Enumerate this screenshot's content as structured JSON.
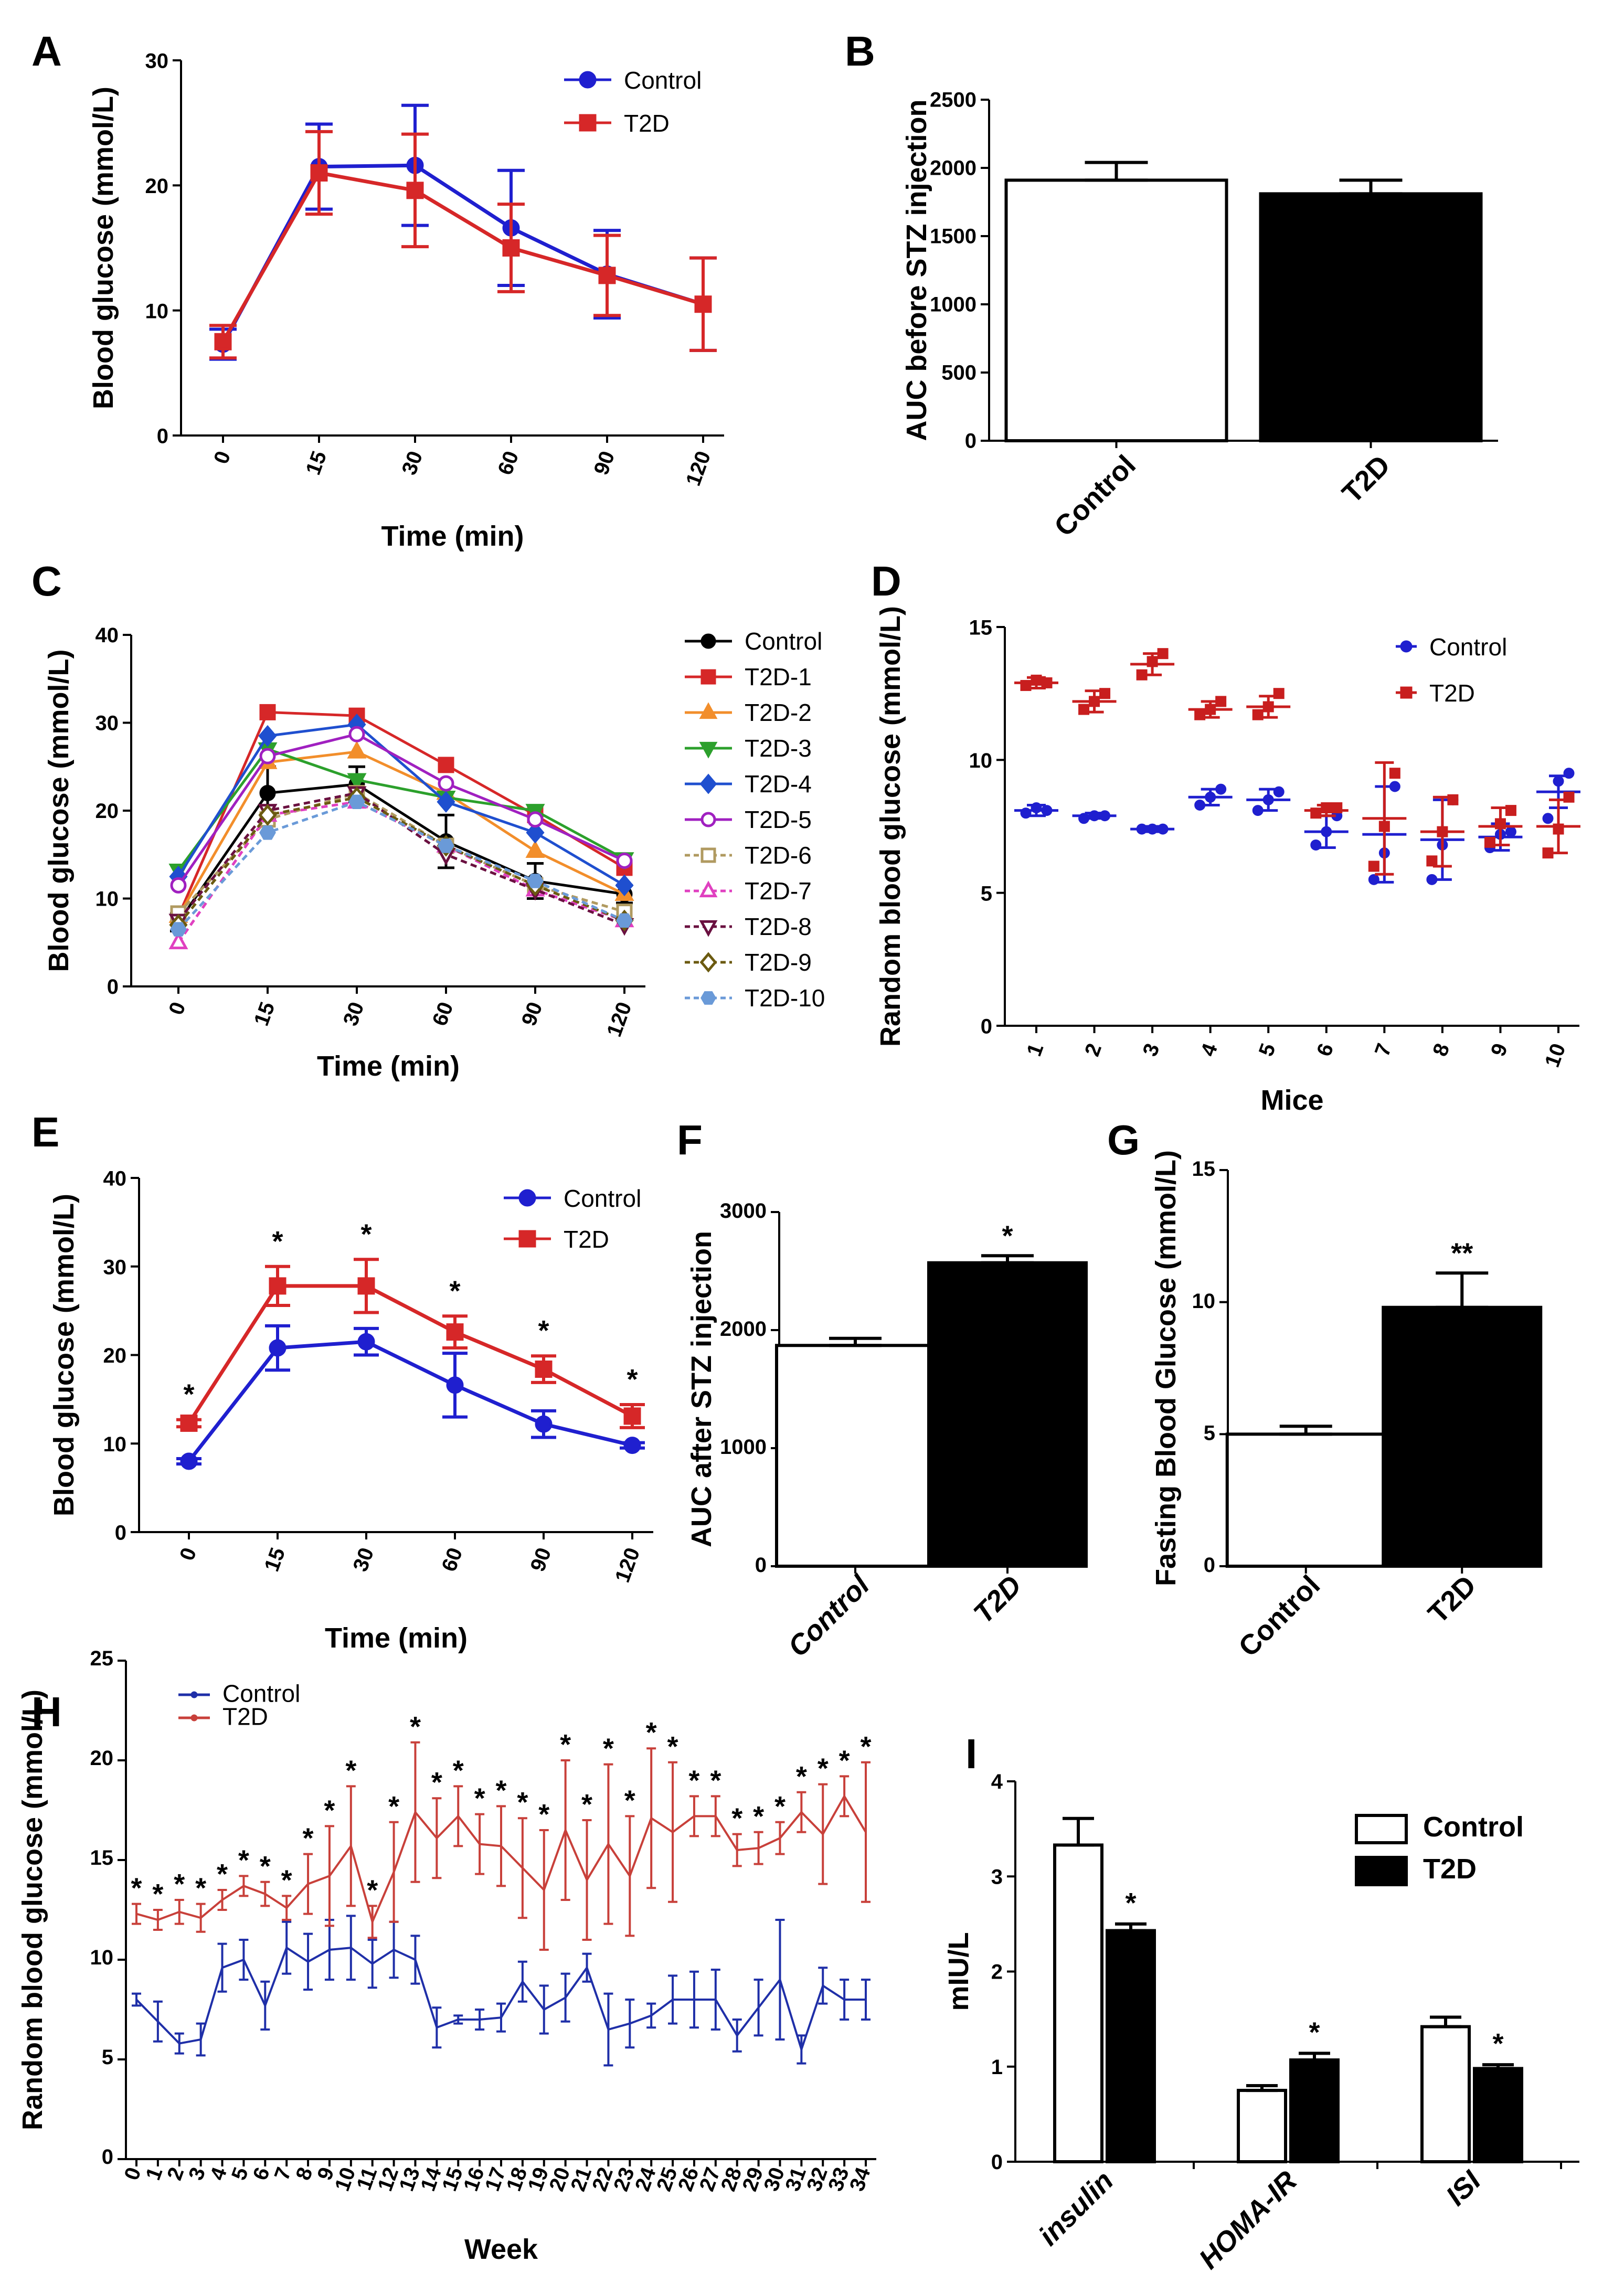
{
  "figure_labels": [
    "A",
    "B",
    "C",
    "D",
    "E",
    "F",
    "G",
    "H",
    "I"
  ],
  "chart_data": [
    {
      "panel": "A",
      "type": "line",
      "xlabel": "Time (min)",
      "ylabel": "Blood glucose (mmol/L)",
      "categories": [
        "0",
        "15",
        "30",
        "60",
        "90",
        "120"
      ],
      "ylim": [
        0,
        30
      ],
      "yticks": [
        0,
        10,
        20,
        30
      ],
      "legend": "top-right",
      "series": [
        {
          "name": "Control",
          "color": "#1f1fcf",
          "marker": "circle",
          "values": [
            7.3,
            21.5,
            21.6,
            16.6,
            12.9,
            10.5
          ],
          "errors": [
            1.2,
            3.4,
            4.8,
            4.6,
            3.5,
            3.7
          ]
        },
        {
          "name": "T2D",
          "color": "#d62728",
          "marker": "square",
          "values": [
            7.5,
            21.0,
            19.6,
            15.0,
            12.8,
            10.5
          ],
          "errors": [
            1.3,
            3.3,
            4.5,
            3.5,
            3.2,
            3.7
          ]
        }
      ]
    },
    {
      "panel": "B",
      "type": "bar",
      "ylabel": "AUC before STZ injection",
      "categories": [
        "Control",
        "T2D"
      ],
      "values": [
        1910,
        1810
      ],
      "errors": [
        130,
        100
      ],
      "fills": [
        "#ffffff",
        "#000000"
      ],
      "ylim": [
        0,
        2500
      ],
      "yticks": [
        0,
        500,
        1000,
        1500,
        2000,
        2500
      ]
    },
    {
      "panel": "C",
      "type": "line",
      "xlabel": "Time (min)",
      "ylabel": "Blood glucose (mmol/L)",
      "categories": [
        "0",
        "15",
        "30",
        "60",
        "90",
        "120"
      ],
      "ylim": [
        0,
        40
      ],
      "yticks": [
        0,
        10,
        20,
        30,
        40
      ],
      "legend": "right",
      "series": [
        {
          "name": "Control",
          "color": "#000000",
          "marker": "circle",
          "dashed": false,
          "values": [
            7.3,
            22.0,
            23.0,
            16.5,
            12.0,
            10.5
          ],
          "errors": [
            1,
            3,
            2,
            3,
            2,
            1
          ]
        },
        {
          "name": "T2D-1",
          "color": "#d62728",
          "marker": "square",
          "dashed": false,
          "values": [
            8.0,
            31.2,
            30.8,
            25.2,
            19.5,
            13.5
          ]
        },
        {
          "name": "T2D-2",
          "color": "#f28e2b",
          "marker": "triangle",
          "dashed": false,
          "values": [
            8.0,
            25.5,
            26.7,
            22.0,
            15.4,
            10.5
          ]
        },
        {
          "name": "T2D-3",
          "color": "#2ca02c",
          "marker": "tridown",
          "dashed": false,
          "values": [
            13.2,
            27.0,
            23.5,
            21.5,
            20.0,
            14.5
          ]
        },
        {
          "name": "T2D-4",
          "color": "#1f4fcf",
          "marker": "diamond",
          "dashed": false,
          "values": [
            12.5,
            28.5,
            29.8,
            21.0,
            17.5,
            11.5
          ]
        },
        {
          "name": "T2D-5",
          "color": "#a020c0",
          "marker": "ocircle",
          "dashed": false,
          "values": [
            11.5,
            26.2,
            28.7,
            23.1,
            19.0,
            14.3
          ]
        },
        {
          "name": "T2D-6",
          "color": "#b09a60",
          "marker": "osquare",
          "dashed": true,
          "values": [
            8.3,
            19.0,
            22.0,
            16.0,
            11.5,
            8.5
          ]
        },
        {
          "name": "T2D-7",
          "color": "#e040c0",
          "marker": "otriangle",
          "dashed": true,
          "values": [
            5.0,
            19.5,
            21.0,
            16.0,
            11.0,
            7.5
          ]
        },
        {
          "name": "T2D-8",
          "color": "#6a1040",
          "marker": "otridown",
          "dashed": true,
          "values": [
            7.5,
            20.0,
            22.0,
            15.0,
            11.0,
            7.0
          ]
        },
        {
          "name": "T2D-9",
          "color": "#6b5a10",
          "marker": "odiamond",
          "dashed": true,
          "values": [
            7.0,
            19.5,
            21.5,
            16.0,
            11.5,
            7.5
          ]
        },
        {
          "name": "T2D-10",
          "color": "#6a9ad8",
          "marker": "hexagon",
          "dashed": true,
          "values": [
            6.5,
            17.5,
            21.0,
            16.0,
            12.0,
            7.5
          ]
        }
      ]
    },
    {
      "panel": "D",
      "type": "scatter",
      "xlabel": "Mice",
      "ylabel": "Random blood glucose (mmol/L)",
      "categories": [
        "1",
        "2",
        "3",
        "4",
        "5",
        "6",
        "7",
        "8",
        "9",
        "10"
      ],
      "ylim": [
        0,
        15
      ],
      "yticks": [
        0,
        5,
        10,
        15
      ],
      "legend": "top-right",
      "series": [
        {
          "name": "Control",
          "color": "#1f1fcf",
          "marker": "circle",
          "means": [
            8.1,
            7.9,
            7.4,
            8.6,
            8.5,
            7.3,
            7.2,
            7.0,
            7.1,
            8.8
          ],
          "errors": [
            0.2,
            0.1,
            0.1,
            0.3,
            0.4,
            0.6,
            1.8,
            1.5,
            0.5,
            0.6
          ],
          "points": [
            [
              8.0,
              8.2,
              8.1
            ],
            [
              7.8,
              7.9,
              7.9
            ],
            [
              7.4,
              7.4,
              7.4
            ],
            [
              8.3,
              8.6,
              8.9
            ],
            [
              8.1,
              8.5,
              8.8
            ],
            [
              6.8,
              7.3,
              7.9
            ],
            [
              5.5,
              6.5,
              9.0
            ],
            [
              5.5,
              6.8,
              8.5
            ],
            [
              6.7,
              7.2,
              7.3
            ],
            [
              7.8,
              9.2,
              9.5
            ]
          ]
        },
        {
          "name": "T2D",
          "color": "#c81e1e",
          "marker": "square",
          "means": [
            12.9,
            12.2,
            13.6,
            11.9,
            12.0,
            8.1,
            7.8,
            7.3,
            7.5,
            7.5
          ],
          "errors": [
            0.2,
            0.4,
            0.4,
            0.3,
            0.4,
            0.2,
            2.1,
            1.3,
            0.7,
            1.0
          ],
          "points": [
            [
              12.8,
              13.0,
              12.9
            ],
            [
              11.9,
              12.2,
              12.5
            ],
            [
              13.2,
              13.7,
              14.0
            ],
            [
              11.7,
              11.9,
              12.2
            ],
            [
              11.7,
              12.0,
              12.5
            ],
            [
              8.0,
              8.2,
              8.2
            ],
            [
              6.0,
              7.5,
              9.5
            ],
            [
              6.2,
              7.3,
              8.5
            ],
            [
              6.9,
              7.6,
              8.1
            ],
            [
              6.5,
              7.4,
              8.6
            ]
          ]
        }
      ]
    },
    {
      "panel": "E",
      "type": "line",
      "xlabel": "Time (min)",
      "ylabel": "Blood glucose (mmol/L)",
      "categories": [
        "0",
        "15",
        "30",
        "60",
        "90",
        "120"
      ],
      "ylim": [
        0,
        40
      ],
      "yticks": [
        0,
        10,
        20,
        30,
        40
      ],
      "legend": "top-right",
      "significance": [
        "*",
        "*",
        "*",
        "*",
        "*",
        "*"
      ],
      "series": [
        {
          "name": "Control",
          "color": "#1f1fcf",
          "marker": "circle",
          "values": [
            8.0,
            20.8,
            21.5,
            16.6,
            12.2,
            9.8
          ],
          "errors": [
            0.3,
            2.5,
            1.5,
            3.6,
            1.5,
            0.3
          ]
        },
        {
          "name": "T2D",
          "color": "#d62728",
          "marker": "square",
          "values": [
            12.3,
            27.8,
            27.8,
            22.6,
            18.4,
            13.1
          ],
          "errors": [
            0.4,
            2.2,
            3.0,
            1.8,
            1.5,
            1.3
          ]
        }
      ]
    },
    {
      "panel": "F",
      "type": "bar",
      "ylabel": "AUC after STZ injection",
      "categories": [
        "Control",
        "T2D"
      ],
      "values": [
        1870,
        2570
      ],
      "errors": [
        60,
        60
      ],
      "fills": [
        "#ffffff",
        "#000000"
      ],
      "significance": [
        "",
        "*"
      ],
      "ylim": [
        0,
        3000
      ],
      "yticks": [
        0,
        1000,
        2000,
        3000
      ]
    },
    {
      "panel": "G",
      "type": "bar",
      "ylabel": "Fasting Blood Glucose (mmol/L)",
      "categories": [
        "Control",
        "T2D"
      ],
      "values": [
        5.0,
        9.8
      ],
      "errors": [
        0.3,
        1.3
      ],
      "fills": [
        "#ffffff",
        "#000000"
      ],
      "significance": [
        "",
        "**"
      ],
      "ylim": [
        0,
        15
      ],
      "yticks": [
        0,
        5,
        10,
        15
      ]
    },
    {
      "panel": "H",
      "type": "line",
      "xlabel": "Week",
      "ylabel": "Random blood glucose (mmol/L)",
      "categories": [
        "0",
        "1",
        "2",
        "3",
        "4",
        "5",
        "6",
        "7",
        "8",
        "9",
        "10",
        "11",
        "12",
        "13",
        "14",
        "15",
        "16",
        "17",
        "18",
        "19",
        "20",
        "21",
        "22",
        "23",
        "24",
        "25",
        "26",
        "27",
        "28",
        "29",
        "30",
        "31",
        "32",
        "33",
        "34"
      ],
      "ylim": [
        0,
        25
      ],
      "yticks": [
        0,
        5,
        10,
        15,
        20,
        25
      ],
      "legend": "top-left",
      "significance": [
        "*",
        "*",
        "*",
        "*",
        "*",
        "*",
        "*",
        "*",
        "*",
        "*",
        "*",
        "*",
        "*",
        "*",
        "*",
        "*",
        "*",
        "*",
        "*",
        "*",
        "*",
        "*",
        "*",
        "*",
        "*",
        "*",
        "*",
        "*",
        "*",
        "*",
        "*",
        "*",
        "*",
        "*",
        "*"
      ],
      "series": [
        {
          "name": "Control",
          "color": "#1f2fa8",
          "values": [
            8.0,
            6.9,
            5.8,
            6.0,
            9.6,
            10.0,
            7.7,
            10.6,
            9.9,
            10.5,
            10.6,
            9.8,
            10.5,
            10.0,
            6.6,
            7.0,
            7.0,
            7.1,
            8.9,
            7.5,
            8.1,
            9.6,
            6.5,
            6.8,
            7.2,
            8.0,
            8.0,
            8.0,
            6.2,
            7.6,
            9.0,
            5.5,
            8.7,
            8.0,
            8.0
          ],
          "errors": [
            0.3,
            1.0,
            0.5,
            0.8,
            1.2,
            1.0,
            1.2,
            1.3,
            1.4,
            1.5,
            1.6,
            1.2,
            1.4,
            1.2,
            1.0,
            0.2,
            0.5,
            0.7,
            1.0,
            1.2,
            1.2,
            0.7,
            1.8,
            1.2,
            0.6,
            1.2,
            1.4,
            1.5,
            0.8,
            1.4,
            3.0,
            0.7,
            0.9,
            1.0,
            1.0
          ]
        },
        {
          "name": "T2D",
          "color": "#c8403a",
          "values": [
            12.3,
            12.0,
            12.4,
            12.1,
            13.0,
            13.7,
            13.3,
            12.6,
            13.8,
            14.2,
            15.7,
            11.9,
            14.4,
            17.4,
            16.1,
            17.2,
            15.8,
            15.7,
            14.6,
            13.5,
            16.5,
            14.0,
            15.8,
            14.2,
            17.1,
            16.4,
            17.2,
            17.2,
            15.5,
            15.6,
            16.1,
            17.4,
            16.3,
            18.2,
            16.4
          ],
          "errors": [
            0.5,
            0.5,
            0.6,
            0.7,
            0.5,
            0.5,
            0.6,
            0.6,
            1.5,
            2.5,
            3.0,
            0.8,
            2.5,
            3.5,
            2.0,
            1.5,
            1.5,
            2.0,
            2.5,
            3.0,
            3.5,
            3.0,
            4.0,
            3.0,
            3.5,
            3.5,
            1.0,
            1.0,
            0.8,
            0.8,
            0.8,
            1.0,
            2.5,
            1.0,
            3.5
          ]
        }
      ]
    },
    {
      "panel": "I",
      "type": "bar",
      "ylabel": "mIU/L",
      "categories": [
        "insulin",
        "HOMA-IR",
        "ISI"
      ],
      "ylim": [
        0,
        4
      ],
      "yticks": [
        0,
        1,
        2,
        3,
        4
      ],
      "legend": "top-right",
      "significance": [
        "*",
        "*",
        "*"
      ],
      "series": [
        {
          "name": "Control",
          "fill": "#ffffff",
          "values": [
            3.33,
            0.75,
            1.42
          ],
          "errors": [
            0.28,
            0.05,
            0.1
          ]
        },
        {
          "name": "T2D",
          "fill": "#000000",
          "values": [
            2.43,
            1.07,
            0.98
          ],
          "errors": [
            0.07,
            0.07,
            0.04
          ]
        }
      ]
    }
  ]
}
